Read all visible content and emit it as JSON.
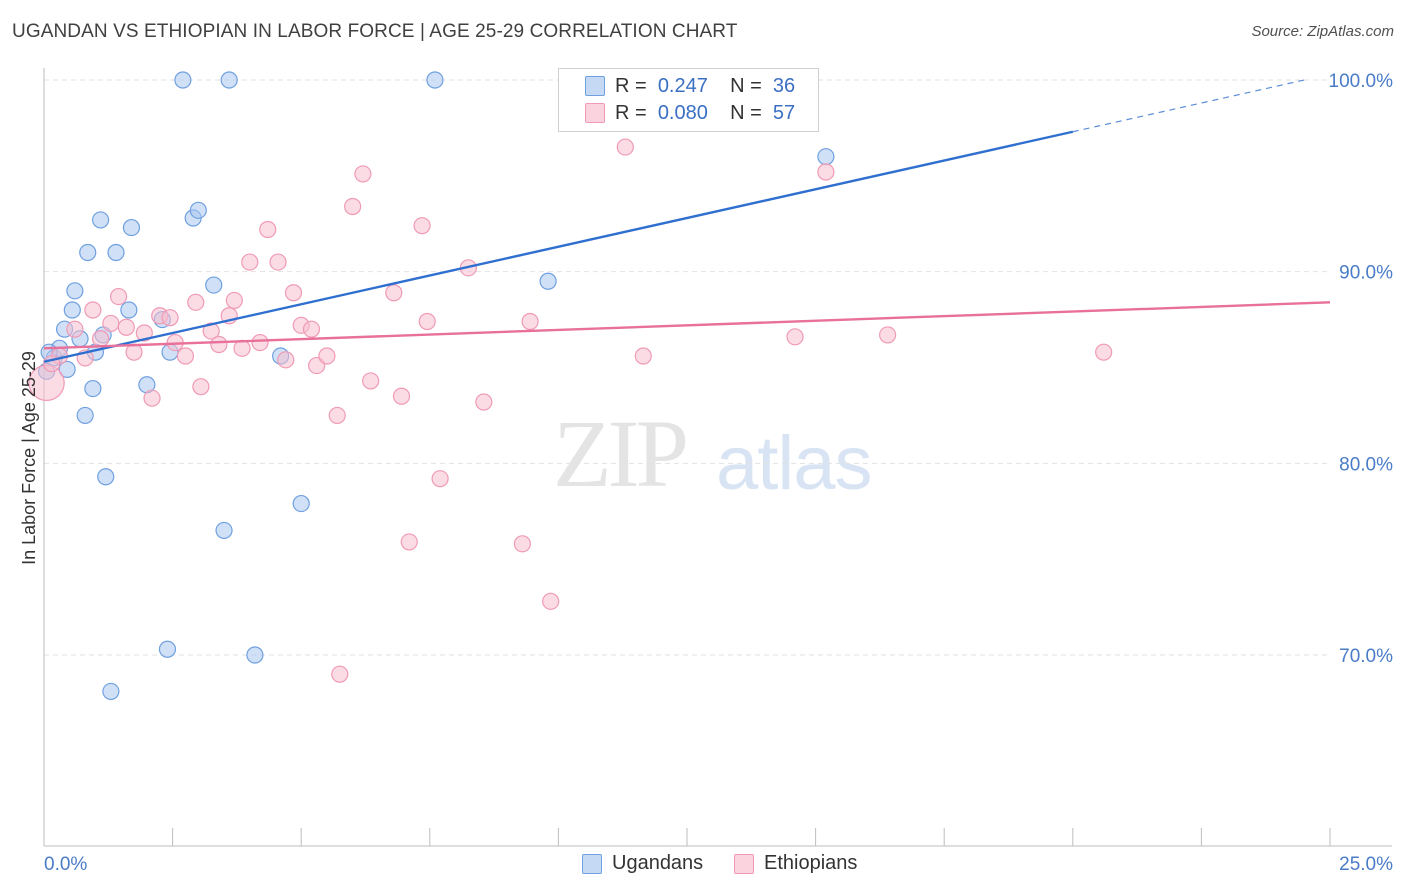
{
  "header": {
    "title": "UGANDAN VS ETHIOPIAN IN LABOR FORCE | AGE 25-29 CORRELATION CHART",
    "source": "Source: ZipAtlas.com"
  },
  "watermark": {
    "zip": "ZIP",
    "atlas": "atlas"
  },
  "legend": {
    "rows": [
      {
        "r_label": "R =",
        "r_value": "0.247",
        "n_label": "N =",
        "n_value": "36",
        "color": "#6fa0e0"
      },
      {
        "r_label": "R =",
        "r_value": "0.080",
        "n_label": "N =",
        "n_value": "57",
        "color": "#f09ab5"
      }
    ]
  },
  "bottom_legend": [
    {
      "label": "Ugandans",
      "color": "#6fa0e0"
    },
    {
      "label": "Ethiopians",
      "color": "#f09ab5"
    }
  ],
  "colors": {
    "ugandan_fill": "#a9c6f0",
    "ugandan_stroke": "#6fa0e0",
    "ugandan_line": "#2f6fcf",
    "ethiopian_fill": "#f7bfd0",
    "ethiopian_stroke": "#f09ab5",
    "ethiopian_line": "#e8709a",
    "grid": "#e2e2e2",
    "tick_label": "#4a7cc7"
  },
  "chart_data": {
    "type": "scatter",
    "title": "UGANDAN VS ETHIOPIAN IN LABOR FORCE | AGE 25-29 CORRELATION CHART",
    "xlabel": "",
    "ylabel": "In Labor Force | Age 25-29",
    "xlim": [
      0,
      25
    ],
    "ylim": [
      60,
      103
    ],
    "x_tick_labels": [
      {
        "value": 0,
        "label": "0.0%"
      },
      {
        "value": 25,
        "label": "25.0%"
      }
    ],
    "y_tick_labels": [
      {
        "value": 70,
        "label": "70.0%"
      },
      {
        "value": 80,
        "label": "80.0%"
      },
      {
        "value": 90,
        "label": "90.0%"
      },
      {
        "value": 100,
        "label": "100.0%"
      }
    ],
    "y_grid": [
      70,
      80,
      90,
      100
    ],
    "series": [
      {
        "name": "Ugandans",
        "R": 0.247,
        "N": 36,
        "trend": {
          "x0": 0,
          "y0": 85.3,
          "x1": 20,
          "y1": 97.3,
          "dashed_to_x": 24.5,
          "dashed_to_y": 100.0
        },
        "points": [
          [
            0.05,
            84.8,
            1
          ],
          [
            0.2,
            85.5,
            1
          ],
          [
            0.3,
            86.0,
            1
          ],
          [
            0.4,
            87.0,
            1
          ],
          [
            0.45,
            84.9,
            1
          ],
          [
            0.55,
            88.0,
            1
          ],
          [
            0.6,
            89.0,
            1
          ],
          [
            0.7,
            86.5,
            1
          ],
          [
            0.8,
            82.5,
            1
          ],
          [
            0.85,
            91.0,
            1
          ],
          [
            0.95,
            83.9,
            1
          ],
          [
            1.0,
            85.8,
            1
          ],
          [
            1.1,
            92.7,
            1
          ],
          [
            1.15,
            86.7,
            1
          ],
          [
            1.2,
            79.3,
            1
          ],
          [
            1.3,
            68.1,
            1
          ],
          [
            1.4,
            91.0,
            1
          ],
          [
            1.65,
            88.0,
            1
          ],
          [
            1.7,
            92.3,
            1
          ],
          [
            2.0,
            84.1,
            1
          ],
          [
            2.3,
            87.5,
            1
          ],
          [
            2.4,
            70.3,
            1
          ],
          [
            2.45,
            85.8,
            1
          ],
          [
            2.7,
            100.0,
            1
          ],
          [
            2.9,
            92.8,
            1
          ],
          [
            3.0,
            93.2,
            1
          ],
          [
            3.3,
            89.3,
            1
          ],
          [
            3.5,
            76.5,
            1
          ],
          [
            3.6,
            100.0,
            1
          ],
          [
            4.1,
            70.0,
            1
          ],
          [
            4.6,
            85.6,
            1
          ],
          [
            5.0,
            77.9,
            1
          ],
          [
            7.6,
            100.0,
            1
          ],
          [
            9.8,
            89.5,
            1
          ],
          [
            15.2,
            96.0,
            1
          ],
          [
            0.1,
            85.8,
            1
          ]
        ]
      },
      {
        "name": "Ethiopians",
        "R": 0.08,
        "N": 57,
        "trend": {
          "x0": 0,
          "y0": 86.0,
          "x1": 25,
          "y1": 88.4
        },
        "points": [
          [
            0.05,
            84.2,
            2.2
          ],
          [
            0.3,
            85.6,
            1
          ],
          [
            0.6,
            87.0,
            1
          ],
          [
            0.8,
            85.5,
            1
          ],
          [
            0.95,
            88.0,
            1
          ],
          [
            1.1,
            86.5,
            1
          ],
          [
            1.3,
            87.3,
            1
          ],
          [
            1.45,
            88.7,
            1
          ],
          [
            1.6,
            87.1,
            1
          ],
          [
            1.75,
            85.8,
            1
          ],
          [
            1.95,
            86.8,
            1
          ],
          [
            2.1,
            83.4,
            1
          ],
          [
            2.25,
            87.7,
            1
          ],
          [
            2.45,
            87.6,
            1
          ],
          [
            2.55,
            86.3,
            1
          ],
          [
            2.75,
            85.6,
            1
          ],
          [
            2.95,
            88.4,
            1
          ],
          [
            3.05,
            84.0,
            1
          ],
          [
            3.25,
            86.9,
            1
          ],
          [
            3.4,
            86.2,
            1
          ],
          [
            3.6,
            87.7,
            1
          ],
          [
            3.7,
            88.5,
            1
          ],
          [
            3.85,
            86.0,
            1
          ],
          [
            4.0,
            90.5,
            1
          ],
          [
            4.2,
            86.3,
            1
          ],
          [
            4.35,
            92.2,
            1
          ],
          [
            4.55,
            90.5,
            1
          ],
          [
            4.7,
            85.4,
            1
          ],
          [
            4.85,
            88.9,
            1
          ],
          [
            5.0,
            87.2,
            1
          ],
          [
            5.2,
            87.0,
            1
          ],
          [
            5.3,
            85.1,
            1
          ],
          [
            5.5,
            85.6,
            1
          ],
          [
            5.7,
            82.5,
            1
          ],
          [
            5.75,
            69.0,
            1
          ],
          [
            6.0,
            93.4,
            1
          ],
          [
            6.2,
            95.1,
            1
          ],
          [
            6.35,
            84.3,
            1
          ],
          [
            6.8,
            88.9,
            1
          ],
          [
            6.95,
            83.5,
            1
          ],
          [
            7.1,
            75.9,
            1
          ],
          [
            7.35,
            92.4,
            1
          ],
          [
            7.45,
            87.4,
            1
          ],
          [
            7.7,
            79.2,
            1
          ],
          [
            8.25,
            90.2,
            1
          ],
          [
            8.55,
            83.2,
            1
          ],
          [
            9.3,
            75.8,
            1
          ],
          [
            9.45,
            87.4,
            1
          ],
          [
            9.85,
            72.8,
            1
          ],
          [
            11.3,
            96.5,
            1
          ],
          [
            11.65,
            85.6,
            1
          ],
          [
            12.0,
            100.0,
            1
          ],
          [
            14.6,
            86.6,
            1
          ],
          [
            15.2,
            95.2,
            1
          ],
          [
            16.4,
            86.7,
            1
          ],
          [
            20.6,
            85.8,
            1
          ],
          [
            0.15,
            85.2,
            1
          ]
        ]
      }
    ]
  }
}
